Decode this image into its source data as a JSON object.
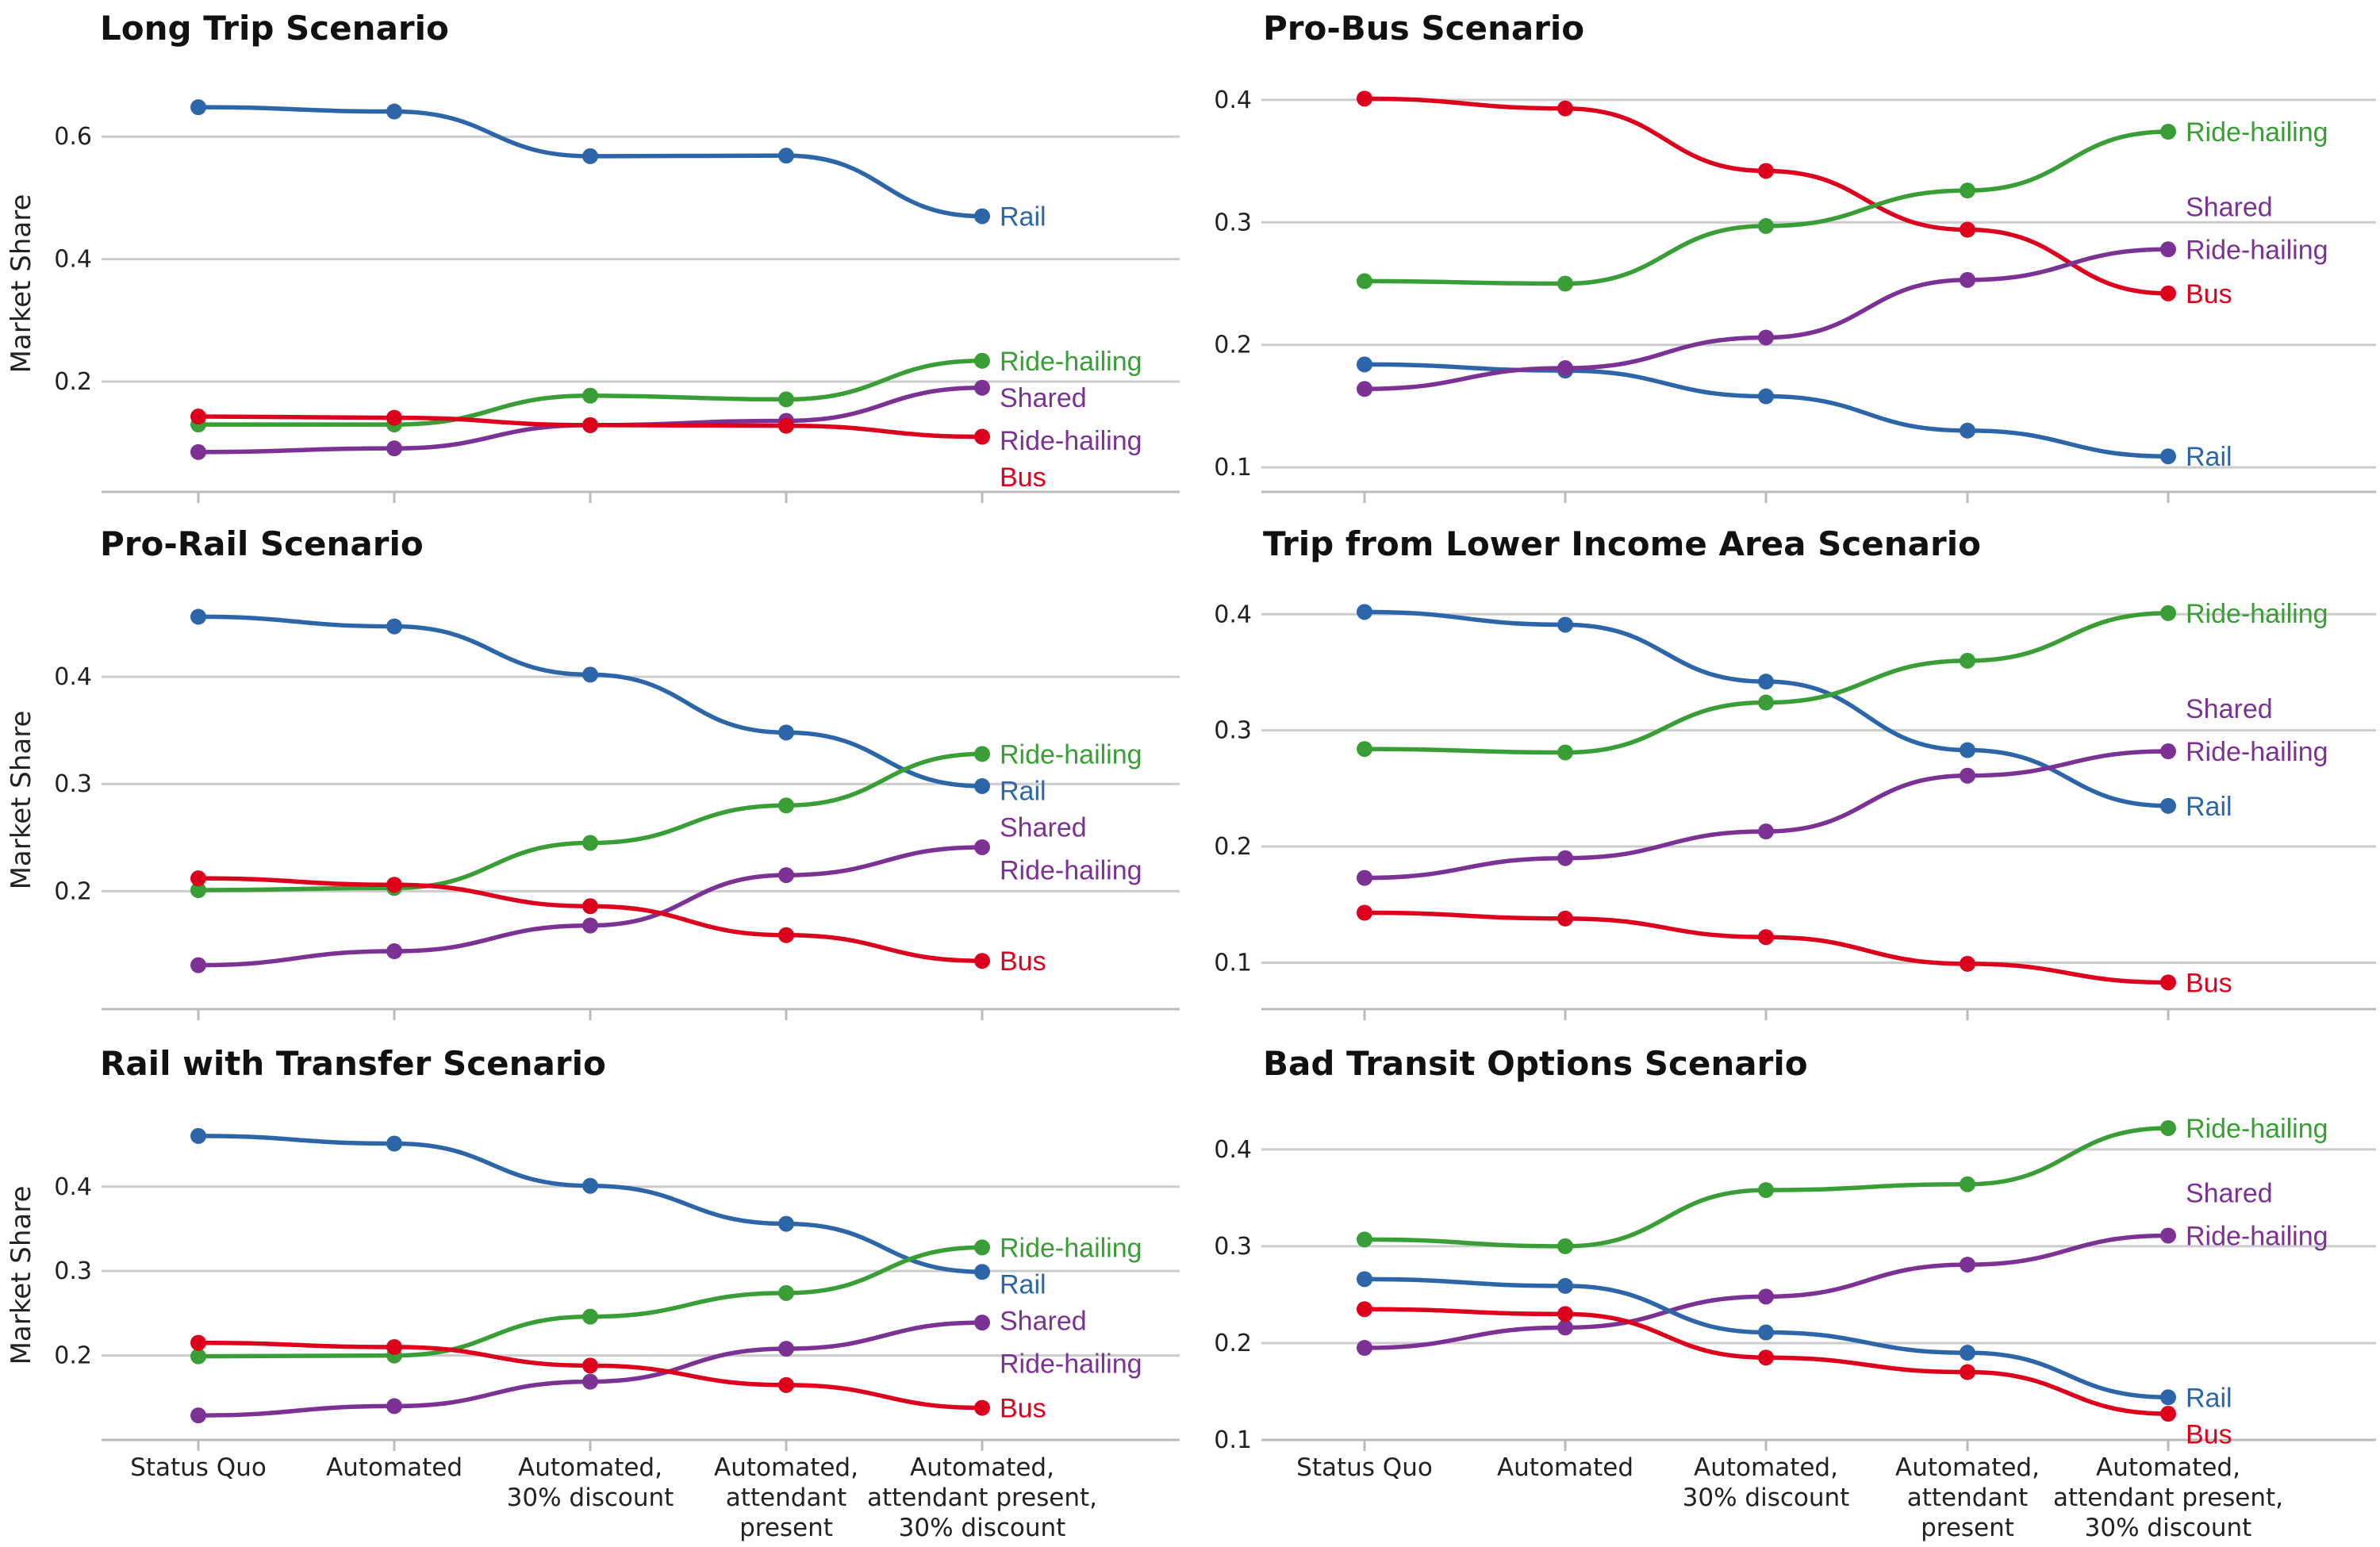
{
  "chart_data": {
    "type": "line",
    "x": [
      "Status Quo",
      "Automated",
      "Automated, 30% discount",
      "Automated, attendant present",
      "Automated, attendant present, 30% discount"
    ],
    "x_tick_lines": [
      [
        "Status Quo"
      ],
      [
        "Automated"
      ],
      [
        "Automated,",
        "30% discount"
      ],
      [
        "Automated,",
        "attendant",
        "present"
      ],
      [
        "Automated,",
        "attendant present,",
        "30% discount"
      ]
    ],
    "ylabel": "Market Share",
    "grid": "horizontal",
    "series_colors": {
      "Rail": "#2c66a8",
      "Bus": "#dc001c",
      "Ride-hailing": "#3a9e37",
      "Shared Ride-hailing": "#7b3294"
    },
    "panels": [
      {
        "title": "Long Trip Scenario",
        "ylim": [
          0.02,
          0.7
        ],
        "yticks": [
          0.2,
          0.4,
          0.6
        ],
        "ytick_labels": [
          "0.2",
          "0.4",
          "0.6"
        ],
        "series": [
          {
            "name": "Rail",
            "values": [
              0.648,
              0.641,
              0.568,
              0.569,
              0.47
            ],
            "end_label": [
              "Rail"
            ]
          },
          {
            "name": "Ride-hailing",
            "values": [
              0.13,
              0.13,
              0.177,
              0.171,
              0.234
            ],
            "end_label": [
              "Ride-hailing"
            ]
          },
          {
            "name": "Shared Ride-hailing",
            "values": [
              0.085,
              0.091,
              0.129,
              0.136,
              0.19
            ],
            "end_label": [
              "Shared",
              "Ride-hailing"
            ]
          },
          {
            "name": "Bus",
            "values": [
              0.143,
              0.141,
              0.129,
              0.128,
              0.11
            ],
            "end_label": [
              "Bus"
            ]
          }
        ]
      },
      {
        "title": "Pro-Bus Scenario",
        "ylim": [
          0.08,
          0.42
        ],
        "yticks": [
          0.1,
          0.2,
          0.3,
          0.4
        ],
        "ytick_labels": [
          "0.1",
          "0.2",
          "0.3",
          "0.4"
        ],
        "series": [
          {
            "name": "Rail",
            "values": [
              0.184,
              0.179,
              0.158,
              0.13,
              0.109
            ],
            "end_label": [
              "Rail"
            ]
          },
          {
            "name": "Bus",
            "values": [
              0.401,
              0.393,
              0.342,
              0.294,
              0.242
            ],
            "end_label": [
              "Bus"
            ]
          },
          {
            "name": "Ride-hailing",
            "values": [
              0.252,
              0.25,
              0.297,
              0.326,
              0.374
            ],
            "end_label": [
              "Ride-hailing"
            ]
          },
          {
            "name": "Shared Ride-hailing",
            "values": [
              0.164,
              0.181,
              0.206,
              0.253,
              0.278
            ],
            "end_label": [
              "Shared",
              "Ride-hailing"
            ]
          }
        ]
      },
      {
        "title": "Pro-Rail Scenario",
        "ylim": [
          0.09,
          0.48
        ],
        "yticks": [
          0.2,
          0.3,
          0.4
        ],
        "ytick_labels": [
          "0.2",
          "0.3",
          "0.4"
        ],
        "series": [
          {
            "name": "Rail",
            "values": [
              0.456,
              0.447,
              0.402,
              0.348,
              0.298
            ],
            "end_label": [
              "Rail"
            ]
          },
          {
            "name": "Ride-hailing",
            "values": [
              0.201,
              0.203,
              0.245,
              0.28,
              0.328
            ],
            "end_label": [
              "Ride-hailing"
            ]
          },
          {
            "name": "Shared Ride-hailing",
            "values": [
              0.131,
              0.144,
              0.168,
              0.215,
              0.241
            ],
            "end_label": [
              "Shared",
              "Ride-hailing"
            ]
          },
          {
            "name": "Bus",
            "values": [
              0.212,
              0.206,
              0.186,
              0.159,
              0.135
            ],
            "end_label": [
              "Bus"
            ]
          }
        ]
      },
      {
        "title": "Trip from Lower Income Area Scenario",
        "ylim": [
          0.06,
          0.42
        ],
        "yticks": [
          0.1,
          0.2,
          0.3,
          0.4
        ],
        "ytick_labels": [
          "0.1",
          "0.2",
          "0.3",
          "0.4"
        ],
        "series": [
          {
            "name": "Rail",
            "values": [
              0.402,
              0.391,
              0.342,
              0.283,
              0.235
            ],
            "end_label": [
              "Rail"
            ]
          },
          {
            "name": "Ride-hailing",
            "values": [
              0.284,
              0.281,
              0.324,
              0.36,
              0.401
            ],
            "end_label": [
              "Ride-hailing"
            ]
          },
          {
            "name": "Shared Ride-hailing",
            "values": [
              0.173,
              0.19,
              0.213,
              0.261,
              0.282
            ],
            "end_label": [
              "Shared",
              "Ride-hailing"
            ]
          },
          {
            "name": "Bus",
            "values": [
              0.143,
              0.138,
              0.122,
              0.099,
              0.083
            ],
            "end_label": [
              "Bus"
            ]
          }
        ]
      },
      {
        "title": "Rail with Transfer Scenario",
        "ylim": [
          0.1,
          0.49
        ],
        "yticks": [
          0.2,
          0.3,
          0.4
        ],
        "ytick_labels": [
          "0.2",
          "0.3",
          "0.4"
        ],
        "series": [
          {
            "name": "Rail",
            "values": [
              0.46,
              0.451,
              0.401,
              0.356,
              0.299
            ],
            "end_label": [
              "Rail"
            ]
          },
          {
            "name": "Ride-hailing",
            "values": [
              0.199,
              0.2,
              0.246,
              0.274,
              0.328
            ],
            "end_label": [
              "Ride-hailing"
            ]
          },
          {
            "name": "Shared Ride-hailing",
            "values": [
              0.129,
              0.14,
              0.169,
              0.208,
              0.239
            ],
            "end_label": [
              "Shared",
              "Ride-hailing"
            ]
          },
          {
            "name": "Bus",
            "values": [
              0.215,
              0.21,
              0.188,
              0.165,
              0.138
            ],
            "end_label": [
              "Bus"
            ]
          }
        ]
      },
      {
        "title": "Bad Transit Options Scenario",
        "ylim": [
          0.1,
          0.44
        ],
        "yticks": [
          0.1,
          0.2,
          0.3,
          0.4
        ],
        "ytick_labels": [
          "0.1",
          "0.2",
          "0.3",
          "0.4"
        ],
        "series": [
          {
            "name": "Ride-hailing",
            "values": [
              0.307,
              0.3,
              0.358,
              0.364,
              0.422
            ],
            "end_label": [
              "Ride-hailing"
            ]
          },
          {
            "name": "Shared Ride-hailing",
            "values": [
              0.195,
              0.216,
              0.248,
              0.281,
              0.311
            ],
            "end_label": [
              "Shared",
              "Ride-hailing"
            ]
          },
          {
            "name": "Rail",
            "values": [
              0.266,
              0.259,
              0.211,
              0.19,
              0.144
            ],
            "end_label": [
              "Rail"
            ]
          },
          {
            "name": "Bus",
            "values": [
              0.235,
              0.23,
              0.185,
              0.17,
              0.127
            ],
            "end_label": [
              "Bus"
            ]
          }
        ]
      }
    ]
  }
}
